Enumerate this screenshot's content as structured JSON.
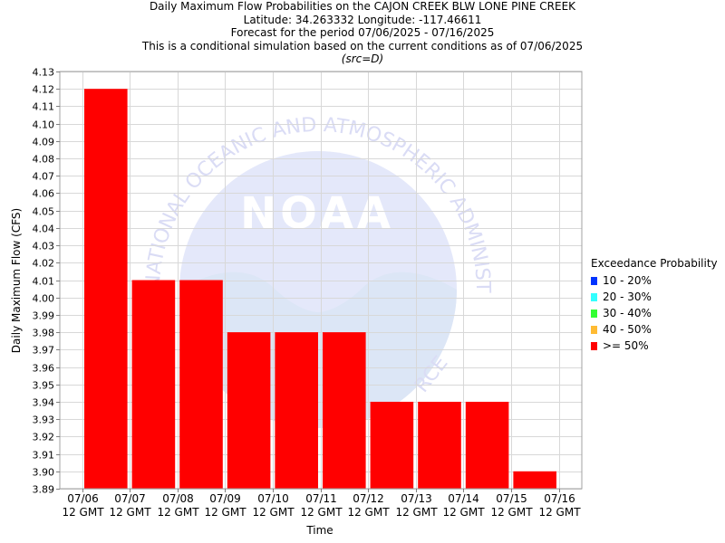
{
  "chart_data": {
    "type": "bar",
    "title": "Daily Maximum Flow Probabilities on the CAJON CREEK BLW LONE PINE CREEK",
    "subtitle_lines": [
      "Latitude: 34.263332 Longitude: -117.46611",
      "Forecast for the period 07/06/2025 - 07/16/2025",
      "This is a conditional simulation based on the current conditions as of 07/06/2025"
    ],
    "source_note": "(src=D)",
    "xlabel": "Time",
    "ylabel": "Daily Maximum Flow (CFS)",
    "ylim": [
      3.89,
      4.13
    ],
    "yticks": [
      "3.89",
      "3.90",
      "3.91",
      "3.92",
      "3.93",
      "3.94",
      "3.95",
      "3.96",
      "3.97",
      "3.98",
      "3.99",
      "4.00",
      "4.01",
      "4.02",
      "4.03",
      "4.04",
      "4.05",
      "4.06",
      "4.07",
      "4.08",
      "4.09",
      "4.10",
      "4.11",
      "4.12",
      "4.13"
    ],
    "xticks": [
      {
        "date": "07/06",
        "time": "12 GMT"
      },
      {
        "date": "07/07",
        "time": "12 GMT"
      },
      {
        "date": "07/08",
        "time": "12 GMT"
      },
      {
        "date": "07/09",
        "time": "12 GMT"
      },
      {
        "date": "07/10",
        "time": "12 GMT"
      },
      {
        "date": "07/11",
        "time": "12 GMT"
      },
      {
        "date": "07/12",
        "time": "12 GMT"
      },
      {
        "date": "07/13",
        "time": "12 GMT"
      },
      {
        "date": "07/14",
        "time": "12 GMT"
      },
      {
        "date": "07/15",
        "time": "12 GMT"
      },
      {
        "date": "07/16",
        "time": "12 GMT"
      }
    ],
    "series": [
      {
        "name": ">= 50%",
        "color": "#ff0000",
        "values": [
          4.12,
          4.01,
          4.01,
          3.98,
          3.98,
          3.98,
          3.94,
          3.94,
          3.94,
          3.9
        ]
      }
    ],
    "grid": true,
    "legend_position": "right",
    "legend_title": "Exceedance Probability",
    "legend": [
      {
        "label": "10 - 20%",
        "color": "#0033ff"
      },
      {
        "label": "20 - 30%",
        "color": "#33ffff"
      },
      {
        "label": "30 - 40%",
        "color": "#33ff33"
      },
      {
        "label": "40 - 50%",
        "color": "#ffbb33"
      },
      {
        "label": ">= 50%",
        "color": "#ff0000"
      }
    ],
    "watermark": {
      "arc_text": "NATIONAL OCEANIC AND ATMOSPHERIC ADMINISTRATION",
      "logo_text": "NOAA",
      "bottom_fragment": "RCE"
    }
  }
}
